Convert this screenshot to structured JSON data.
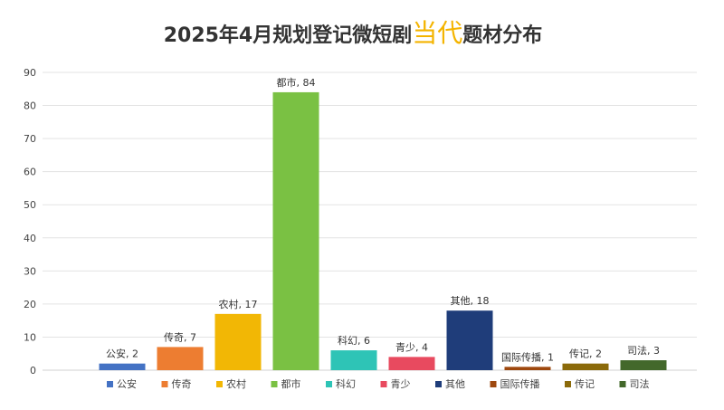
{
  "chart_data": {
    "type": "bar",
    "title_parts": [
      "2025年4月规划登记微短剧",
      "当代",
      "题材分布"
    ],
    "categories": [
      "公安",
      "传奇",
      "农村",
      "都市",
      "科幻",
      "青少",
      "其他",
      "国际传播",
      "传记",
      "司法"
    ],
    "values": [
      2,
      7,
      17,
      84,
      6,
      4,
      18,
      1,
      2,
      3
    ],
    "colors": [
      "#4472C4",
      "#ED7D31",
      "#F2B705",
      "#7AC143",
      "#2EC4B6",
      "#E84A5F",
      "#1F3D7A",
      "#9E480E",
      "#8B6A0A",
      "#43682B"
    ],
    "data_labels": [
      "公安, 2",
      "传奇, 7",
      "农村, 17",
      "都市, 84",
      "科幻, 6",
      "青少, 4",
      "其他, 18",
      "国际传播, 1",
      "传记, 2",
      "司法, 3"
    ],
    "ylim": [
      0,
      90
    ],
    "yticks": [
      0,
      10,
      20,
      30,
      40,
      50,
      60,
      70,
      80,
      90
    ],
    "ytick_labels": [
      "0",
      "10",
      "20",
      "30",
      "40",
      "50",
      "60",
      "70",
      "80",
      "90"
    ],
    "grid": true,
    "legend_position": "bottom",
    "accent_color": "#F4B400"
  }
}
